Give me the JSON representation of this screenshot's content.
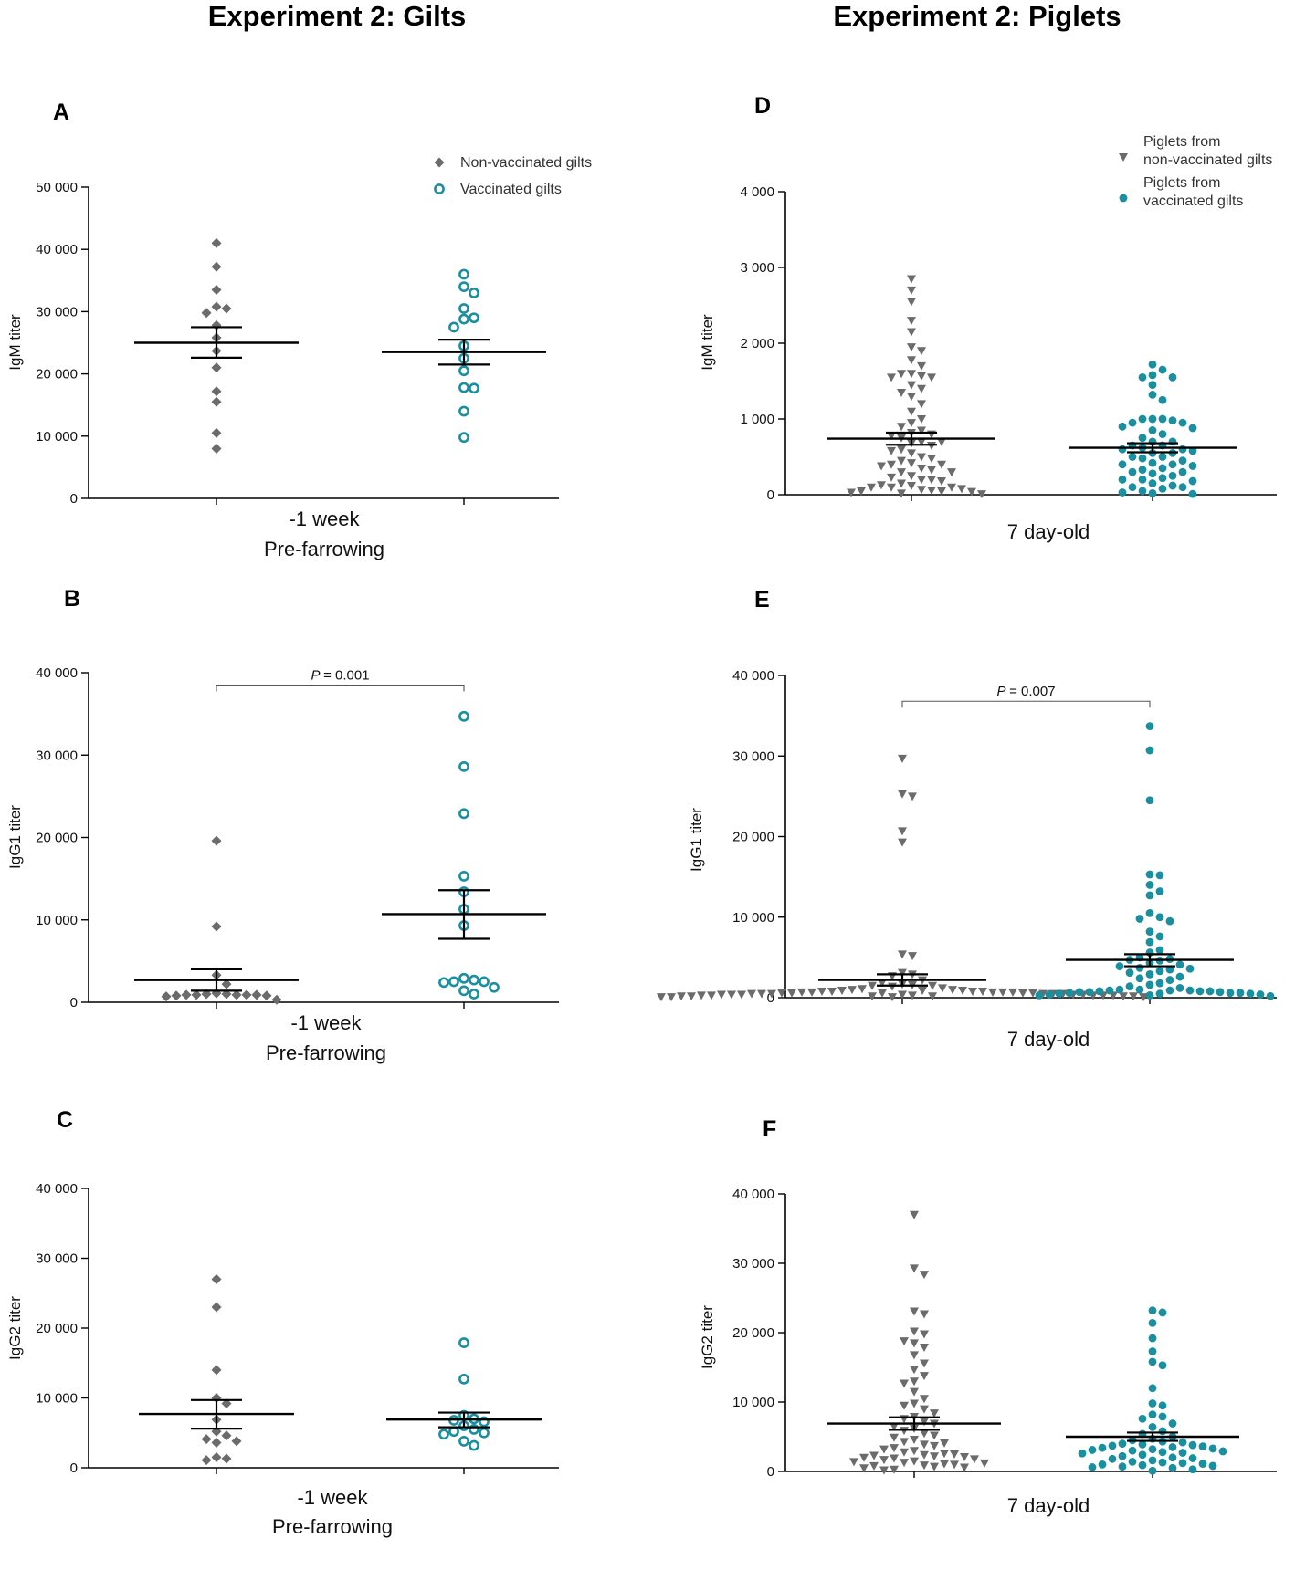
{
  "headers": {
    "left": "Experiment 2: Gilts",
    "right": "Experiment 2: Piglets"
  },
  "colors": {
    "gray": "#6b6b6b",
    "teal": "#1a8fa0",
    "line": "#000000"
  },
  "chart_data": [
    {
      "id": "A",
      "panel": "A",
      "type": "scatter",
      "ylabel": "IgM titer",
      "ylim": [
        0,
        50000
      ],
      "yticks": [
        0,
        10000,
        20000,
        30000,
        40000,
        50000
      ],
      "ytick_labels": [
        "0",
        "10 000",
        "20 000",
        "30 000",
        "40 000",
        "50 000"
      ],
      "xcat_lines": [
        "-1 week",
        "Pre-farrowing"
      ],
      "legend": [
        {
          "label": "Non-vaccinated gilts",
          "marker": "diamond",
          "color": "#6b6b6b"
        },
        {
          "label": "Vaccinated gilts",
          "marker": "open-circle",
          "color": "#1a8fa0"
        }
      ],
      "series": [
        {
          "name": "Non-vaccinated gilts",
          "marker": "diamond",
          "color": "#6b6b6b",
          "mean": 25000,
          "sem_low": 22600,
          "sem_high": 27500,
          "values": [
            41000,
            37200,
            33500,
            30500,
            30800,
            29800,
            27800,
            25800,
            23700,
            21000,
            17200,
            15500,
            10500,
            8000
          ]
        },
        {
          "name": "Vaccinated gilts",
          "marker": "open-circle",
          "color": "#1a8fa0",
          "mean": 23500,
          "sem_low": 21500,
          "sem_high": 25500,
          "values": [
            36000,
            34000,
            33000,
            30500,
            29000,
            28800,
            27500,
            24500,
            22500,
            20500,
            17800,
            17700,
            14000,
            9800
          ]
        }
      ]
    },
    {
      "id": "B",
      "panel": "B",
      "type": "scatter",
      "ylabel": "IgG1 titer",
      "ylim": [
        0,
        40000
      ],
      "yticks": [
        0,
        10000,
        20000,
        30000,
        40000
      ],
      "ytick_labels": [
        "0",
        "10 000",
        "20 000",
        "30 000",
        "40 000"
      ],
      "xcat_lines": [
        "-1 week",
        "Pre-farrowing"
      ],
      "significance": {
        "p_symbol": "P",
        "p_value": "= 0.001",
        "y": 38500
      },
      "series": [
        {
          "name": "Non-vaccinated gilts",
          "marker": "diamond",
          "color": "#6b6b6b",
          "mean": 2700,
          "sem_low": 1400,
          "sem_high": 4000,
          "values": [
            19600,
            9200,
            3300,
            2200,
            1100,
            1000,
            1000,
            900,
            900,
            900,
            900,
            900,
            800,
            800,
            700,
            300
          ]
        },
        {
          "name": "Vaccinated gilts",
          "marker": "open-circle",
          "color": "#1a8fa0",
          "mean": 10700,
          "sem_low": 7700,
          "sem_high": 13600,
          "values": [
            34700,
            28600,
            22900,
            15300,
            13400,
            11300,
            9300,
            2900,
            2700,
            2500,
            2500,
            2400,
            1800,
            1400,
            1000
          ]
        }
      ]
    },
    {
      "id": "C",
      "panel": "C",
      "type": "scatter",
      "ylabel": "IgG2 titer",
      "ylim": [
        0,
        40000
      ],
      "yticks": [
        0,
        10000,
        20000,
        30000,
        40000
      ],
      "ytick_labels": [
        "0",
        "10 000",
        "20 000",
        "30 000",
        "40 000"
      ],
      "xcat_lines": [
        "-1 week",
        "Pre-farrowing"
      ],
      "series": [
        {
          "name": "Non-vaccinated gilts",
          "marker": "diamond",
          "color": "#6b6b6b",
          "mean": 7700,
          "sem_low": 5600,
          "sem_high": 9700,
          "values": [
            27000,
            23000,
            14000,
            10000,
            9200,
            6900,
            5200,
            4600,
            4100,
            3800,
            3600,
            1500,
            1300,
            1100
          ]
        },
        {
          "name": "Vaccinated gilts",
          "marker": "open-circle",
          "color": "#1a8fa0",
          "mean": 6900,
          "sem_low": 5800,
          "sem_high": 7900,
          "values": [
            17900,
            12700,
            7500,
            7000,
            6800,
            6600,
            6000,
            5500,
            5200,
            5000,
            4800,
            3800,
            3200
          ]
        }
      ]
    },
    {
      "id": "D",
      "panel": "D",
      "type": "scatter",
      "ylabel": "IgM titer",
      "ylim": [
        0,
        4000
      ],
      "yticks": [
        0,
        1000,
        2000,
        3000,
        4000
      ],
      "ytick_labels": [
        "0",
        "1 000",
        "2 000",
        "3 000",
        "4 000"
      ],
      "xcat_lines": [
        "7 day-old"
      ],
      "legend": [
        {
          "label": "Piglets from|non-vaccinated gilts",
          "marker": "triangle-down",
          "color": "#6b6b6b"
        },
        {
          "label": "Piglets from|vaccinated gilts",
          "marker": "filled-circle",
          "color": "#1a8fa0"
        }
      ],
      "series": [
        {
          "name": "Piglets from non-vaccinated gilts",
          "marker": "triangle-down",
          "color": "#6b6b6b",
          "mean": 740,
          "sem_low": 660,
          "sem_high": 820,
          "values": [
            2850,
            2700,
            2550,
            2300,
            2150,
            1950,
            1900,
            1780,
            1700,
            1600,
            1600,
            1570,
            1550,
            1550,
            1450,
            1400,
            1350,
            1300,
            1200,
            1100,
            1000,
            950,
            900,
            850,
            820,
            800,
            780,
            750,
            700,
            700,
            680,
            650,
            600,
            580,
            550,
            500,
            480,
            450,
            420,
            400,
            400,
            380,
            350,
            330,
            300,
            300,
            250,
            230,
            200,
            200,
            180,
            150,
            130,
            120,
            100,
            100,
            100,
            80,
            70,
            60,
            50,
            50,
            40,
            30,
            20,
            10
          ]
        },
        {
          "name": "Piglets from vaccinated gilts",
          "marker": "filled-circle",
          "color": "#1a8fa0",
          "mean": 620,
          "sem_low": 560,
          "sem_high": 680,
          "values": [
            1720,
            1650,
            1580,
            1550,
            1550,
            1450,
            1320,
            1250,
            1000,
            1000,
            1000,
            980,
            950,
            950,
            900,
            880,
            850,
            800,
            750,
            700,
            700,
            650,
            650,
            620,
            600,
            600,
            580,
            550,
            550,
            500,
            500,
            480,
            450,
            420,
            400,
            400,
            380,
            350,
            330,
            300,
            300,
            280,
            250,
            220,
            200,
            200,
            180,
            150,
            120,
            100,
            100,
            80,
            50,
            30,
            20,
            10
          ]
        }
      ]
    },
    {
      "id": "E",
      "panel": "E",
      "type": "scatter",
      "ylabel": "IgG1 titer",
      "ylim": [
        0,
        40000
      ],
      "yticks": [
        0,
        10000,
        20000,
        30000,
        40000
      ],
      "ytick_labels": [
        "0",
        "10 000",
        "20 000",
        "30 000",
        "40 000"
      ],
      "xcat_lines": [
        "7 day-old"
      ],
      "significance": {
        "p_symbol": "P",
        "p_value": "= 0.007",
        "y": 36800
      },
      "series": [
        {
          "name": "Piglets from non-vaccinated gilts",
          "marker": "triangle-down",
          "color": "#6b6b6b",
          "mean": 2200,
          "sem_low": 1500,
          "sem_high": 2900,
          "values": [
            29700,
            25300,
            25000,
            20700,
            19300,
            5400,
            5200,
            3100,
            2900,
            2700,
            2200,
            1900,
            1700,
            1600,
            1500,
            1500,
            1400,
            1200,
            1100,
            1000,
            1000,
            900,
            900,
            900,
            800,
            800,
            800,
            800,
            700,
            700,
            700,
            700,
            700,
            600,
            600,
            600,
            600,
            600,
            500,
            500,
            500,
            500,
            500,
            500,
            400,
            400,
            400,
            400,
            400,
            400,
            300,
            300,
            300,
            300,
            300,
            300,
            200,
            200,
            200,
            200,
            200,
            200,
            100,
            100,
            100,
            100
          ]
        },
        {
          "name": "Piglets from vaccinated gilts",
          "marker": "filled-circle",
          "color": "#1a8fa0",
          "mean": 4700,
          "sem_low": 3900,
          "sem_high": 5400,
          "values": [
            33700,
            30700,
            24500,
            15300,
            15200,
            14000,
            13200,
            12700,
            10500,
            10000,
            9800,
            9500,
            8200,
            7600,
            6900,
            5900,
            5600,
            5000,
            4800,
            4700,
            4600,
            4300,
            4100,
            3900,
            3700,
            3600,
            3500,
            3300,
            3100,
            2900,
            2600,
            2400,
            2200,
            1800,
            1600,
            1400,
            1200,
            1000,
            1000,
            900,
            900,
            900,
            800,
            800,
            800,
            700,
            700,
            700,
            600,
            600,
            600,
            500,
            500,
            500,
            400,
            400,
            300,
            300,
            200
          ]
        }
      ]
    },
    {
      "id": "F",
      "panel": "F",
      "type": "scatter",
      "ylabel": "IgG2 titer",
      "ylim": [
        0,
        40000
      ],
      "yticks": [
        0,
        10000,
        20000,
        30000,
        40000
      ],
      "ytick_labels": [
        "0",
        "10 000",
        "20 000",
        "30 000",
        "40 000"
      ],
      "xcat_lines": [
        "7 day-old"
      ],
      "series": [
        {
          "name": "Piglets from non-vaccinated gilts",
          "marker": "triangle-down",
          "color": "#6b6b6b",
          "mean": 6900,
          "sem_low": 6000,
          "sem_high": 7800,
          "values": [
            37000,
            29300,
            28400,
            23100,
            22700,
            20200,
            19800,
            18800,
            18500,
            17900,
            16800,
            15600,
            14700,
            13800,
            13000,
            12700,
            11500,
            10500,
            9800,
            9500,
            9000,
            8400,
            7900,
            7600,
            7200,
            6900,
            6500,
            6200,
            5900,
            5500,
            5200,
            4900,
            4600,
            4300,
            4100,
            3900,
            3700,
            3400,
            3200,
            3000,
            2800,
            2600,
            2500,
            2400,
            2300,
            2200,
            2100,
            2000,
            1900,
            1800,
            1700,
            1500,
            1400,
            1300,
            1200,
            1100,
            1000,
            900,
            800,
            700,
            600,
            500,
            300,
            200
          ]
        },
        {
          "name": "Piglets from vaccinated gilts",
          "marker": "filled-circle",
          "color": "#1a8fa0",
          "mean": 5000,
          "sem_low": 4400,
          "sem_high": 5600,
          "values": [
            23200,
            22900,
            21400,
            19200,
            17300,
            15800,
            15300,
            12000,
            9800,
            9500,
            8200,
            7900,
            7600,
            6900,
            6400,
            5800,
            5400,
            5000,
            4700,
            4500,
            4300,
            4200,
            4000,
            3900,
            3800,
            3700,
            3600,
            3500,
            3400,
            3300,
            3200,
            3100,
            3000,
            2900,
            2800,
            2700,
            2600,
            2400,
            2200,
            2000,
            1900,
            1800,
            1600,
            1400,
            1300,
            1200,
            1100,
            1000,
            900,
            800,
            700,
            600,
            500,
            300,
            100
          ]
        }
      ]
    }
  ]
}
